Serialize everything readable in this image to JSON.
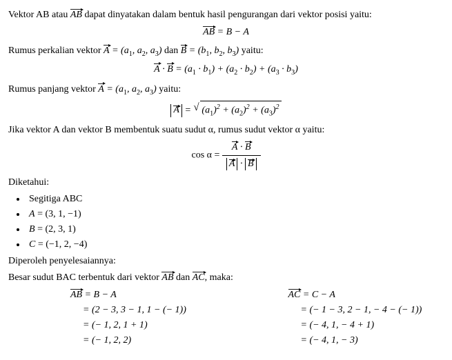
{
  "p1_a": "Vektor AB atau ",
  "p1_vec": "AB",
  "p1_b": " dapat dinyatakan dalam bentuk hasil pengurangan dari vektor posisi yaitu:",
  "eq1_lhs_vec": "AB",
  "eq1_rhs": " = B − A",
  "p2_a": "Rumus perkalian vektor ",
  "p2_vecA": "A",
  "p2_eqA": " = (a",
  "p2_eqA2": ", a",
  "p2_eqA3": ", a",
  "p2_eqA_end": ")",
  "p2_mid": " dan ",
  "p2_vecB": "B",
  "p2_eqB": " = (b",
  "p2_eqB2": ", b",
  "p2_eqB3": ", b",
  "p2_eqB_end": ")",
  "p2_end": " yaitu:",
  "eq2_vecA": "A",
  "eq2_dot": " ∙ ",
  "eq2_vecB": "B",
  "eq2_rhs": " = (a",
  "eq2_rhs2": " ∙ b",
  "eq2_rhs3": ") + (a",
  "eq2_rhs4": " ∙ b",
  "eq2_rhs5": ") + (a",
  "eq2_rhs6": " ∙ b",
  "eq2_rhs7": ")",
  "p3_a": "Rumus panjang vektor ",
  "p3_vecA": "A",
  "p3_eq": " = (a",
  "p3_eq2": ", a",
  "p3_eq3": ", a",
  "p3_eq_end": ")",
  "p3_end": " yaitu:",
  "eq3_abs_vec": "A",
  "eq3_eq": " = ",
  "eq3_rad_a": "(a",
  "eq3_rad_b": ")",
  "eq3_plus": " + (a",
  "p4": "Jika vektor A dan vektor B membentuk suatu sudut α, rumus sudut vektor α yaitu:",
  "eq4_lhs": "cos α = ",
  "eq4_num_vecA": "A",
  "eq4_num_dot": " ∙ ",
  "eq4_num_vecB": "B",
  "eq4_den_vecA": "A",
  "eq4_den_mid": " ∙ ",
  "eq4_den_vecB": "B",
  "diketahui": "Diketahui:",
  "li1": "Segitiga ABC",
  "li2_lhs": "A",
  "li2_rhs": " = (3, 1, −1)",
  "li3_lhs": "B",
  "li3_rhs": " = (2, 3, 1)",
  "li4_lhs": "C",
  "li4_rhs": " = (−1, 2, −4)",
  "diperoleh": "Diperoleh penyelesaiannya:",
  "besar_a": "Besar sudut BAC terbentuk dari vektor ",
  "besar_vec1": "AB",
  "besar_mid": " dan ",
  "besar_vec2": "AC",
  "besar_end": ", maka:",
  "colL": {
    "l1_vec": "AB",
    "l1": " = B − A",
    "l2": "= (2 − 3, 3 − 1, 1 − (− 1))",
    "l3": "= (− 1, 2, 1 + 1)",
    "l4": "= (− 1, 2, 2)"
  },
  "colR": {
    "l1_vec": "AC",
    "l1": " = C − A",
    "l2": "= (− 1 − 3, 2 − 1, − 4 − (− 1))",
    "l3": "= (− 4, 1, − 4 + 1)",
    "l4": "= (− 4, 1, − 3)"
  }
}
